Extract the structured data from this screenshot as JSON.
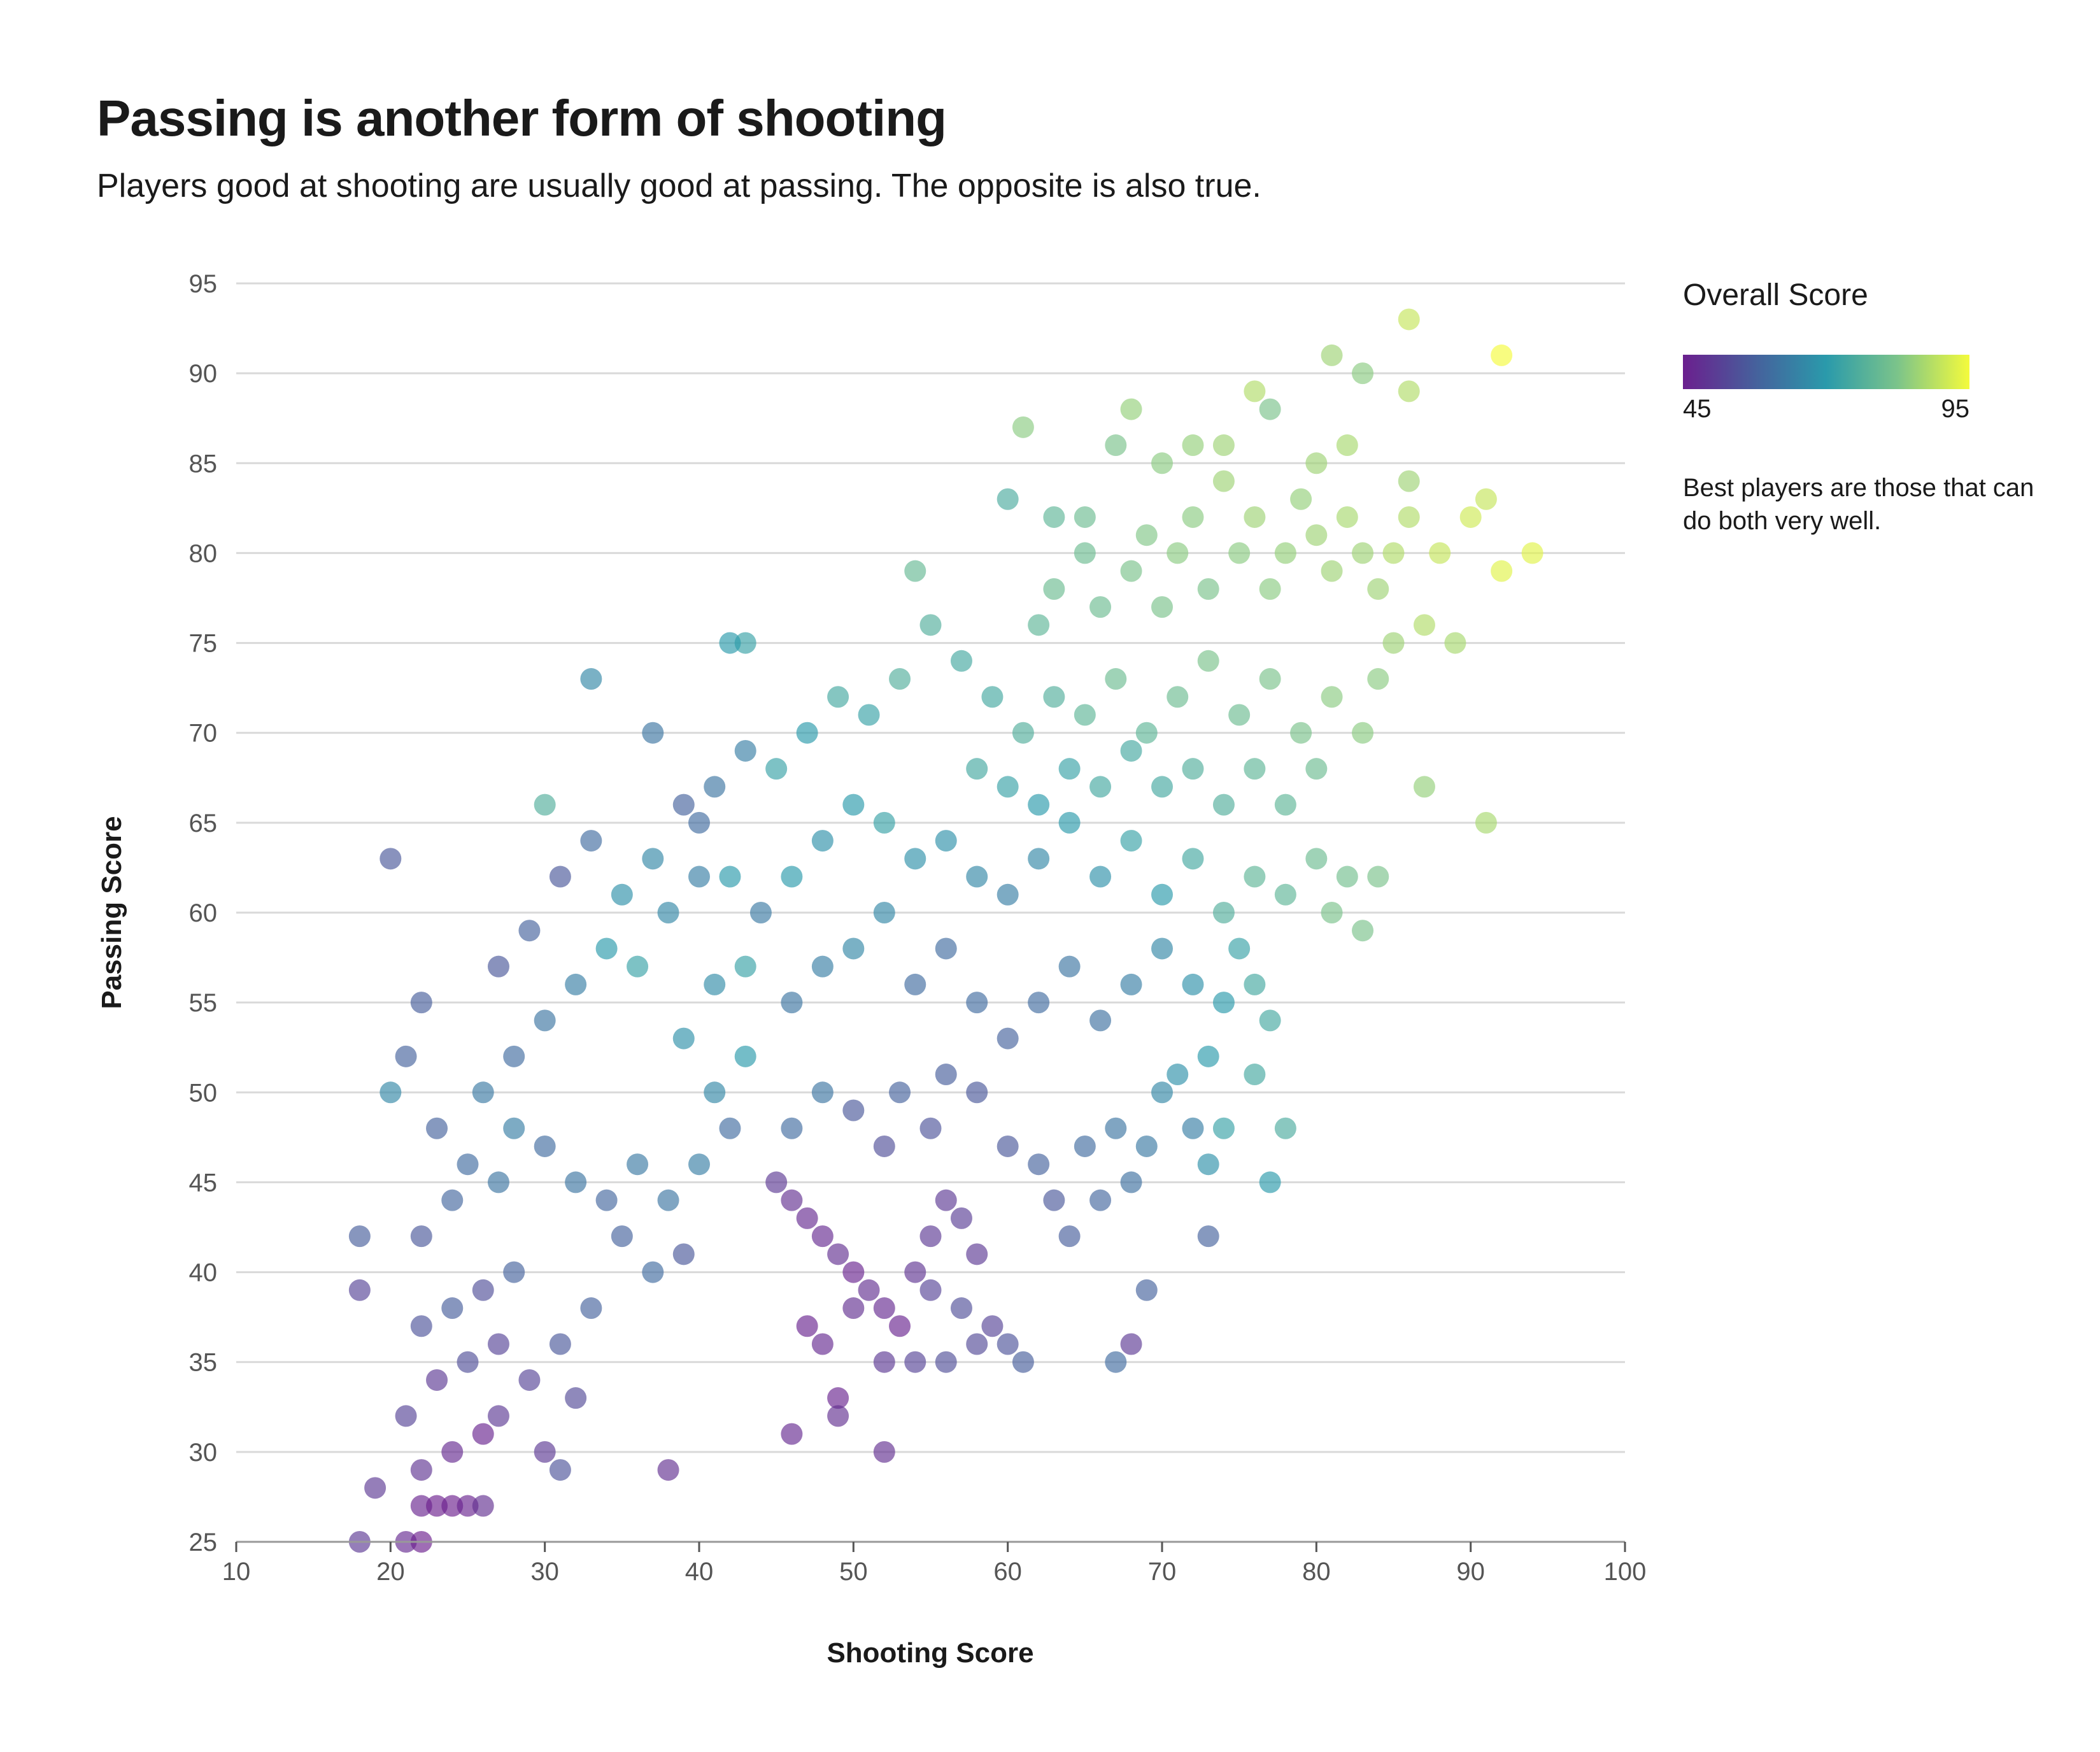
{
  "title": "Passing is another form of shooting",
  "subtitle": "Players good at shooting are usually good at passing. The opposite is also true.",
  "legend": {
    "title": "Overall Score",
    "min_label": "45",
    "max_label": "95",
    "note": "Best players are those that can do both very well."
  },
  "colors": {
    "scale": [
      "#6b1f8e",
      "#46609c",
      "#2a9aab",
      "#7cc48a",
      "#f4fb3c"
    ],
    "grid": "#d9d9d9",
    "axis": "#555555"
  },
  "chart_data": {
    "type": "scatter",
    "xlabel": "Shooting Score",
    "ylabel": "Passing Score",
    "xlim": [
      10,
      100
    ],
    "ylim": [
      25,
      95
    ],
    "xticks": [
      10,
      20,
      30,
      40,
      50,
      60,
      70,
      80,
      90,
      100
    ],
    "yticks": [
      25,
      30,
      35,
      40,
      45,
      50,
      55,
      60,
      65,
      70,
      75,
      80,
      85,
      90,
      95
    ],
    "grid": "horizontal",
    "color_field": "Overall Score",
    "color_range": [
      45,
      95
    ],
    "point_fields": [
      "shooting",
      "passing",
      "overall"
    ],
    "points": [
      [
        20,
        63,
        56
      ],
      [
        18,
        42,
        57
      ],
      [
        18,
        39,
        52
      ],
      [
        19,
        28,
        50
      ],
      [
        18,
        25,
        50
      ],
      [
        21,
        25,
        47
      ],
      [
        22,
        25,
        45
      ],
      [
        33,
        73,
        66
      ],
      [
        38,
        29,
        48
      ],
      [
        46,
        31,
        47
      ],
      [
        52,
        30,
        48
      ],
      [
        49,
        33,
        46
      ],
      [
        49,
        32,
        48
      ],
      [
        61,
        87,
        84
      ],
      [
        60,
        83,
        75
      ],
      [
        86,
        93,
        90
      ],
      [
        81,
        91,
        86
      ],
      [
        92,
        91,
        95
      ],
      [
        83,
        90,
        84
      ],
      [
        86,
        89,
        88
      ],
      [
        94,
        80,
        93
      ],
      [
        92,
        79,
        93
      ],
      [
        91,
        83,
        90
      ],
      [
        90,
        82,
        91
      ],
      [
        89,
        75,
        87
      ],
      [
        87,
        67,
        85
      ],
      [
        91,
        65,
        87
      ],
      [
        88,
        80,
        90
      ],
      [
        68,
        88,
        85
      ],
      [
        77,
        88,
        82
      ],
      [
        76,
        89,
        88
      ],
      [
        73,
        42,
        58
      ],
      [
        77,
        45,
        70
      ],
      [
        78,
        48,
        75
      ],
      [
        67,
        35,
        60
      ],
      [
        68,
        36,
        50
      ],
      [
        69,
        39,
        58
      ],
      [
        43,
        75,
        72
      ],
      [
        42,
        75,
        70
      ],
      [
        37,
        70,
        62
      ],
      [
        30,
        66,
        76
      ],
      [
        20,
        50,
        66
      ],
      [
        21,
        52,
        58
      ],
      [
        22,
        55,
        57
      ],
      [
        22,
        27,
        46
      ],
      [
        23,
        27,
        45
      ],
      [
        24,
        27,
        45
      ],
      [
        25,
        27,
        46
      ],
      [
        26,
        27,
        48
      ],
      [
        22,
        29,
        49
      ],
      [
        24,
        30,
        47
      ],
      [
        26,
        31,
        46
      ],
      [
        27,
        32,
        50
      ],
      [
        21,
        32,
        52
      ],
      [
        23,
        34,
        50
      ],
      [
        25,
        35,
        54
      ],
      [
        27,
        36,
        52
      ],
      [
        22,
        37,
        55
      ],
      [
        24,
        38,
        57
      ],
      [
        26,
        39,
        54
      ],
      [
        28,
        40,
        58
      ],
      [
        30,
        30,
        50
      ],
      [
        31,
        29,
        55
      ],
      [
        32,
        33,
        53
      ],
      [
        29,
        34,
        52
      ],
      [
        31,
        36,
        56
      ],
      [
        33,
        38,
        58
      ],
      [
        22,
        42,
        56
      ],
      [
        24,
        44,
        59
      ],
      [
        25,
        46,
        60
      ],
      [
        27,
        45,
        62
      ],
      [
        23,
        48,
        58
      ],
      [
        26,
        50,
        63
      ],
      [
        28,
        48,
        64
      ],
      [
        30,
        47,
        60
      ],
      [
        32,
        45,
        62
      ],
      [
        34,
        44,
        59
      ],
      [
        36,
        46,
        63
      ],
      [
        28,
        52,
        60
      ],
      [
        30,
        54,
        62
      ],
      [
        32,
        56,
        64
      ],
      [
        27,
        57,
        56
      ],
      [
        29,
        59,
        58
      ],
      [
        31,
        62,
        56
      ],
      [
        33,
        64,
        60
      ],
      [
        35,
        61,
        68
      ],
      [
        37,
        63,
        66
      ],
      [
        34,
        58,
        70
      ],
      [
        36,
        57,
        72
      ],
      [
        38,
        60,
        66
      ],
      [
        40,
        62,
        64
      ],
      [
        35,
        42,
        58
      ],
      [
        37,
        40,
        60
      ],
      [
        39,
        41,
        56
      ],
      [
        38,
        44,
        62
      ],
      [
        40,
        46,
        64
      ],
      [
        42,
        48,
        60
      ],
      [
        41,
        50,
        66
      ],
      [
        43,
        52,
        70
      ],
      [
        39,
        53,
        68
      ],
      [
        41,
        56,
        67
      ],
      [
        43,
        57,
        72
      ],
      [
        44,
        60,
        63
      ],
      [
        42,
        62,
        70
      ],
      [
        40,
        65,
        60
      ],
      [
        39,
        66,
        58
      ],
      [
        41,
        67,
        62
      ],
      [
        43,
        69,
        64
      ],
      [
        45,
        68,
        72
      ],
      [
        45,
        45,
        50
      ],
      [
        46,
        44,
        48
      ],
      [
        47,
        43,
        47
      ],
      [
        48,
        42,
        47
      ],
      [
        49,
        41,
        48
      ],
      [
        50,
        40,
        46
      ],
      [
        51,
        39,
        48
      ],
      [
        52,
        38,
        47
      ],
      [
        53,
        37,
        46
      ],
      [
        47,
        37,
        46
      ],
      [
        48,
        36,
        47
      ],
      [
        50,
        38,
        48
      ],
      [
        54,
        40,
        49
      ],
      [
        55,
        42,
        50
      ],
      [
        56,
        44,
        50
      ],
      [
        57,
        43,
        51
      ],
      [
        58,
        41,
        50
      ],
      [
        55,
        39,
        52
      ],
      [
        57,
        38,
        54
      ],
      [
        59,
        37,
        52
      ],
      [
        60,
        36,
        55
      ],
      [
        61,
        35,
        57
      ],
      [
        58,
        36,
        53
      ],
      [
        56,
        35,
        54
      ],
      [
        54,
        35,
        52
      ],
      [
        52,
        35,
        50
      ],
      [
        46,
        48,
        60
      ],
      [
        48,
        50,
        62
      ],
      [
        50,
        49,
        56
      ],
      [
        52,
        47,
        54
      ],
      [
        53,
        50,
        58
      ],
      [
        55,
        48,
        55
      ],
      [
        56,
        51,
        57
      ],
      [
        58,
        50,
        56
      ],
      [
        60,
        47,
        56
      ],
      [
        62,
        46,
        58
      ],
      [
        63,
        44,
        56
      ],
      [
        64,
        42,
        57
      ],
      [
        66,
        44,
        59
      ],
      [
        65,
        47,
        60
      ],
      [
        67,
        48,
        62
      ],
      [
        68,
        45,
        61
      ],
      [
        69,
        47,
        63
      ],
      [
        70,
        50,
        66
      ],
      [
        72,
        48,
        64
      ],
      [
        71,
        51,
        68
      ],
      [
        73,
        52,
        70
      ],
      [
        46,
        55,
        62
      ],
      [
        48,
        57,
        64
      ],
      [
        50,
        58,
        66
      ],
      [
        52,
        60,
        66
      ],
      [
        54,
        56,
        60
      ],
      [
        56,
        58,
        60
      ],
      [
        58,
        55,
        60
      ],
      [
        60,
        53,
        58
      ],
      [
        62,
        55,
        60
      ],
      [
        64,
        57,
        62
      ],
      [
        66,
        54,
        61
      ],
      [
        68,
        56,
        64
      ],
      [
        70,
        58,
        66
      ],
      [
        72,
        56,
        68
      ],
      [
        74,
        55,
        70
      ],
      [
        76,
        56,
        74
      ],
      [
        75,
        58,
        72
      ],
      [
        77,
        54,
        74
      ],
      [
        76,
        51,
        74
      ],
      [
        74,
        48,
        72
      ],
      [
        73,
        46,
        68
      ],
      [
        46,
        62,
        70
      ],
      [
        48,
        64,
        68
      ],
      [
        50,
        66,
        70
      ],
      [
        52,
        65,
        72
      ],
      [
        54,
        63,
        68
      ],
      [
        56,
        64,
        68
      ],
      [
        58,
        62,
        66
      ],
      [
        60,
        61,
        64
      ],
      [
        62,
        63,
        66
      ],
      [
        64,
        65,
        70
      ],
      [
        66,
        62,
        68
      ],
      [
        68,
        64,
        72
      ],
      [
        70,
        61,
        70
      ],
      [
        72,
        63,
        74
      ],
      [
        74,
        60,
        76
      ],
      [
        76,
        62,
        78
      ],
      [
        78,
        61,
        78
      ],
      [
        80,
        63,
        80
      ],
      [
        81,
        60,
        82
      ],
      [
        82,
        62,
        81
      ],
      [
        83,
        59,
        82
      ],
      [
        84,
        62,
        82
      ],
      [
        47,
        70,
        70
      ],
      [
        49,
        72,
        74
      ],
      [
        51,
        71,
        72
      ],
      [
        53,
        73,
        76
      ],
      [
        54,
        79,
        79
      ],
      [
        55,
        76,
        76
      ],
      [
        57,
        74,
        74
      ],
      [
        59,
        72,
        74
      ],
      [
        61,
        70,
        76
      ],
      [
        63,
        72,
        76
      ],
      [
        65,
        71,
        78
      ],
      [
        67,
        73,
        80
      ],
      [
        69,
        70,
        78
      ],
      [
        71,
        72,
        80
      ],
      [
        73,
        74,
        82
      ],
      [
        75,
        71,
        80
      ],
      [
        77,
        73,
        82
      ],
      [
        79,
        70,
        82
      ],
      [
        81,
        72,
        84
      ],
      [
        83,
        70,
        84
      ],
      [
        84,
        73,
        84
      ],
      [
        85,
        75,
        86
      ],
      [
        58,
        68,
        74
      ],
      [
        60,
        67,
        72
      ],
      [
        62,
        66,
        70
      ],
      [
        64,
        68,
        72
      ],
      [
        66,
        67,
        74
      ],
      [
        68,
        69,
        74
      ],
      [
        70,
        67,
        74
      ],
      [
        72,
        68,
        76
      ],
      [
        74,
        66,
        76
      ],
      [
        76,
        68,
        78
      ],
      [
        78,
        66,
        78
      ],
      [
        80,
        68,
        80
      ],
      [
        62,
        76,
        78
      ],
      [
        63,
        78,
        80
      ],
      [
        65,
        80,
        80
      ],
      [
        66,
        77,
        80
      ],
      [
        68,
        79,
        82
      ],
      [
        69,
        81,
        83
      ],
      [
        70,
        77,
        82
      ],
      [
        71,
        80,
        84
      ],
      [
        72,
        82,
        84
      ],
      [
        73,
        78,
        82
      ],
      [
        74,
        84,
        86
      ],
      [
        75,
        80,
        84
      ],
      [
        76,
        82,
        86
      ],
      [
        77,
        78,
        84
      ],
      [
        78,
        80,
        85
      ],
      [
        79,
        83,
        85
      ],
      [
        80,
        81,
        86
      ],
      [
        81,
        79,
        86
      ],
      [
        82,
        82,
        87
      ],
      [
        83,
        80,
        86
      ],
      [
        84,
        78,
        86
      ],
      [
        85,
        80,
        88
      ],
      [
        86,
        82,
        88
      ],
      [
        87,
        76,
        88
      ],
      [
        86,
        84,
        86
      ],
      [
        82,
        86,
        87
      ],
      [
        80,
        85,
        86
      ],
      [
        74,
        86,
        86
      ],
      [
        72,
        86,
        85
      ],
      [
        70,
        85,
        84
      ],
      [
        67,
        86,
        82
      ],
      [
        65,
        82,
        80
      ],
      [
        63,
        82,
        78
      ]
    ]
  }
}
